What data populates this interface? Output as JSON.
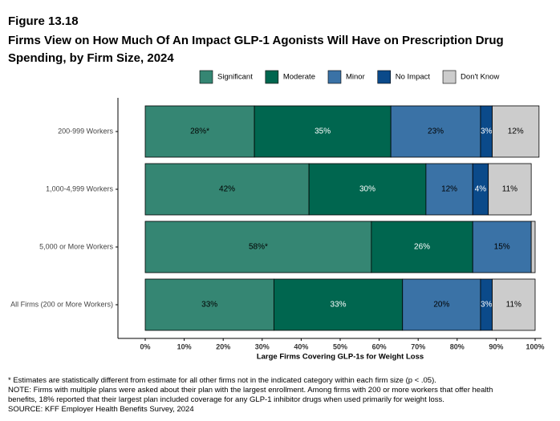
{
  "chart_data": {
    "type": "stacked-bar-horizontal",
    "figure_label": "Figure 13.18",
    "title": "Firms View on How Much Of An Impact GLP-1 Agonists Will Have on Prescription Drug Spending, by Firm Size, 2024",
    "x_label": "Large Firms Covering GLP-1s for Weight Loss",
    "categories": [
      "200-999 Workers",
      "1,000-4,999 Workers",
      "5,000 or More Workers",
      "All Firms (200 or More Workers)"
    ],
    "series": [
      {
        "name": "Significant",
        "color": "#358673",
        "label_color": "#000000",
        "values": [
          28,
          42,
          58,
          33
        ],
        "value_labels": [
          "28%*",
          "42%",
          "58%*",
          "33%"
        ]
      },
      {
        "name": "Moderate",
        "color": "#00664f",
        "label_color": "#ffffff",
        "values": [
          35,
          30,
          26,
          33
        ],
        "value_labels": [
          "35%",
          "30%",
          "26%",
          "33%"
        ]
      },
      {
        "name": "Minor",
        "color": "#3a72a6",
        "label_color": "#000000",
        "values": [
          23,
          12,
          15,
          20
        ],
        "value_labels": [
          "23%",
          "12%",
          "15%",
          "20%"
        ]
      },
      {
        "name": "No Impact",
        "color": "#0b4a8a",
        "label_color": "#ffffff",
        "values": [
          3,
          4,
          0,
          3
        ],
        "value_labels": [
          "3%",
          "4%",
          null,
          "3%"
        ]
      },
      {
        "name": "Don't Know",
        "color": "#cccccc",
        "label_color": "#000000",
        "values": [
          12,
          11,
          1,
          11
        ],
        "value_labels": [
          "12%",
          "11%",
          null,
          "11%"
        ]
      }
    ],
    "xlim": [
      0,
      100
    ],
    "xticks": [
      {
        "value": 0,
        "label": "0%"
      },
      {
        "value": 10,
        "label": "10%"
      },
      {
        "value": 20,
        "label": "20%"
      },
      {
        "value": 30,
        "label": "30%"
      },
      {
        "value": 40,
        "label": "40%"
      },
      {
        "value": 50,
        "label": "50%"
      },
      {
        "value": 60,
        "label": "60%"
      },
      {
        "value": 70,
        "label": "70%"
      },
      {
        "value": 80,
        "label": "80%"
      },
      {
        "value": 90,
        "label": "90%"
      },
      {
        "value": 100,
        "label": "100%"
      }
    ],
    "legend_position": "top",
    "notes": [
      "* Estimates are statistically different from estimate for all other firms not in the indicated category within each firm size (p < .05).",
      "NOTE: Firms with multiple plans were asked about their plan with the largest enrollment.  Among firms with 200 or more workers that offer health benefits, 18% reported that their largest plan included coverage for any GLP-1 inhibitor drugs when used primarily for weight loss.",
      "SOURCE: KFF Employer Health Benefits Survey, 2024"
    ]
  }
}
